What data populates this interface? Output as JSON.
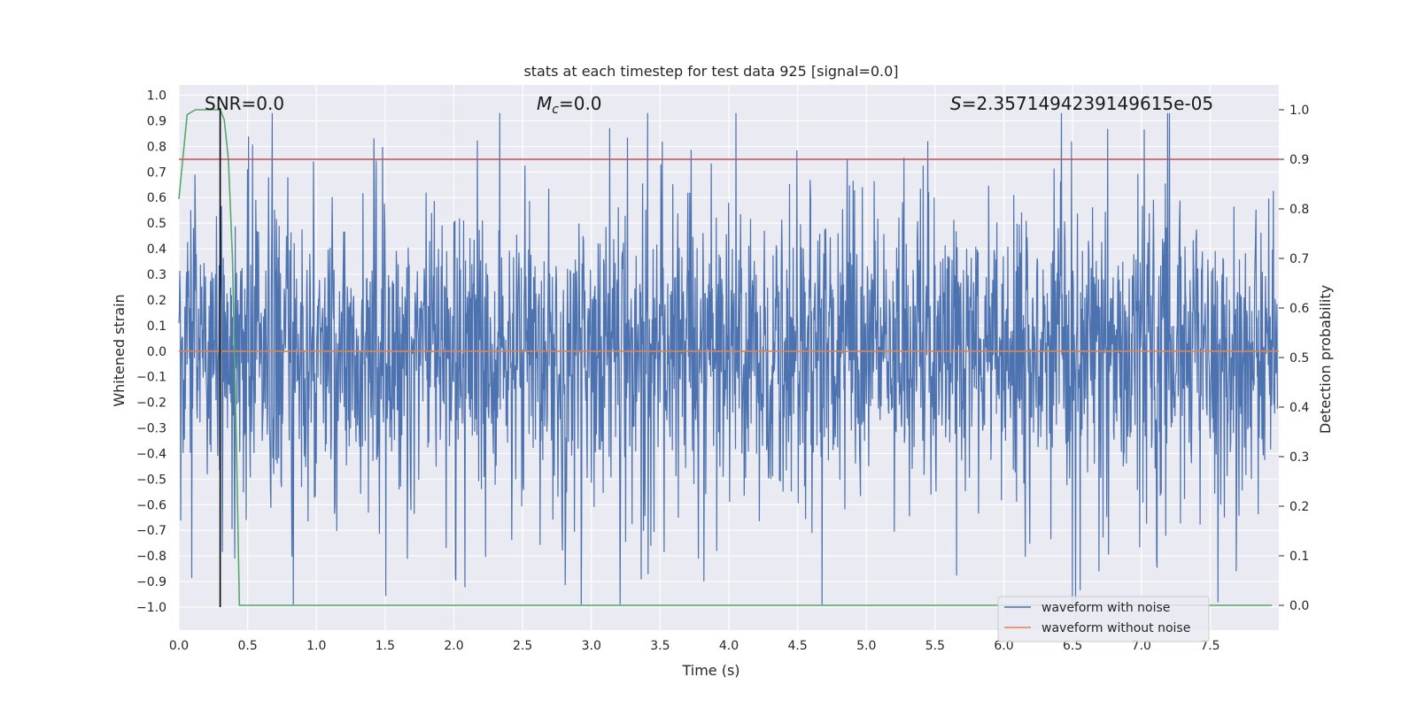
{
  "chart_data": {
    "type": "line",
    "title": "stats at each timestep for test data 925 [signal=0.0]",
    "xlabel": "Time (s)",
    "ylabel": "Whitened strain",
    "y2label": "Detection probability",
    "xlim": [
      0.0,
      8.0
    ],
    "ylim": [
      -1.09,
      1.04
    ],
    "y2lim": [
      -0.05,
      1.05
    ],
    "xticks": [
      "0.0",
      "0.5",
      "1.0",
      "1.5",
      "2.0",
      "2.5",
      "3.0",
      "3.5",
      "4.0",
      "4.5",
      "5.0",
      "5.5",
      "6.0",
      "6.5",
      "7.0",
      "7.5"
    ],
    "yticks": [
      "1.0",
      "0.9",
      "0.8",
      "0.7",
      "0.6",
      "0.5",
      "0.4",
      "0.3",
      "0.2",
      "0.1",
      "0.0",
      "-0.1",
      "-0.2",
      "-0.3",
      "-0.4",
      "-0.5",
      "-0.6",
      "-0.7",
      "-0.8",
      "-0.9",
      "-1.0"
    ],
    "y2ticks": [
      "1.0",
      "0.9",
      "0.8",
      "0.7",
      "0.6",
      "0.5",
      "0.4",
      "0.3",
      "0.2",
      "0.1",
      "0.0"
    ],
    "annotations": {
      "snr": "SNR=0.0",
      "mc_symbol": "M",
      "mc_sub": "c",
      "mc_value": "=0.0",
      "s_symbol": "S",
      "s_value": "=2.3571494239149615e-05"
    },
    "legend": {
      "placement": "lower-right",
      "entries": [
        "waveform with noise",
        "waveform without noise"
      ]
    },
    "series": [
      {
        "name": "waveform with noise",
        "axis": "left",
        "color": "#4c72b0",
        "kind": "noise",
        "amplitude_typical": 0.5,
        "amplitude_max": 0.93,
        "amplitude_min": -0.99
      },
      {
        "name": "waveform without noise",
        "axis": "left",
        "color": "#dd8452",
        "x": [
          0.0,
          8.0
        ],
        "y": [
          0.0,
          0.0
        ]
      },
      {
        "axis": "right",
        "color": "#55a868",
        "x": [
          0.0,
          0.06,
          0.12,
          0.18,
          0.24,
          0.3,
          0.33,
          0.36,
          0.39,
          0.42,
          0.44,
          0.6,
          1.0,
          2.0,
          3.0,
          4.0,
          5.0,
          6.0,
          7.0,
          7.95
        ],
        "y": [
          0.82,
          0.99,
          1.0,
          1.0,
          1.0,
          1.0,
          0.98,
          0.9,
          0.7,
          0.3,
          0.0,
          0.0,
          0.0,
          0.0,
          0.0,
          0.0,
          0.0,
          0.0,
          0.0,
          0.0
        ]
      },
      {
        "axis": "right",
        "color": "#c44e52",
        "x": [
          0.0,
          8.0
        ],
        "y": [
          0.9,
          0.9
        ]
      },
      {
        "axis": "left",
        "color": "#000000",
        "x": [
          0.3,
          0.3
        ],
        "y": [
          -1.0,
          0.95
        ]
      }
    ]
  }
}
